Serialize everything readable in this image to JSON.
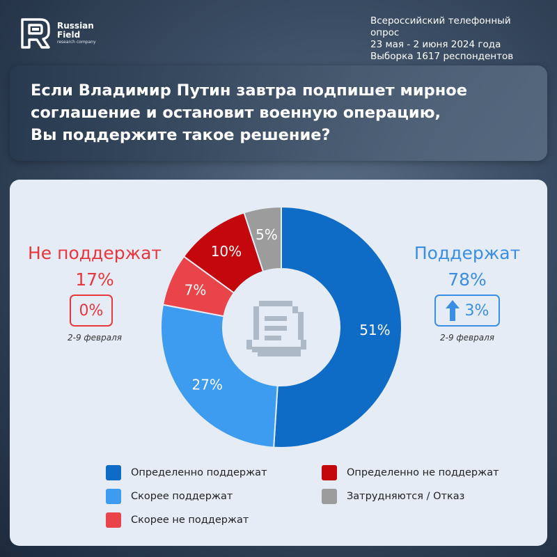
{
  "brand": {
    "name_line1": "Russian",
    "name_line2": "Field",
    "tagline": "research company"
  },
  "survey": {
    "line1": "Всероссийский телефонный опрос",
    "line2": "23 мая - 2 июня 2024 года",
    "line3": "Выборка 1617 респондентов"
  },
  "question": {
    "line1": "Если Владимир Путин завтра подпишет мирное",
    "line2": "соглашение и остановит  военную операцию,",
    "line3": "Вы поддержите такое решение?"
  },
  "summary": {
    "oppose": {
      "label": "Не поддержат",
      "value_text": "17%",
      "change_text": "0%",
      "period": "2-9 февраля",
      "color": "#e8363c"
    },
    "support": {
      "label": "Поддержат",
      "value_text": "78%",
      "change_text": "3%",
      "change_direction": "up",
      "period": "2-9 февраля",
      "color": "#3a8ee6"
    }
  },
  "chart_data": {
    "type": "pie",
    "style": "donut",
    "center_icon": "document-icon",
    "slices": [
      {
        "label": "Определенно поддержат",
        "value": 51,
        "value_text": "51%",
        "color": "#0f6cc6"
      },
      {
        "label": "Скорее поддержат",
        "value": 27,
        "value_text": "27%",
        "color": "#3d9cf0"
      },
      {
        "label": "Скорее не поддержат",
        "value": 7,
        "value_text": "7%",
        "color": "#e8444a"
      },
      {
        "label": "Определенно не поддержат",
        "value": 10,
        "value_text": "10%",
        "color": "#c4060d"
      },
      {
        "label": "Затрудняются / Отказ",
        "value": 5,
        "value_text": "5%",
        "color": "#9c9c9c"
      }
    ],
    "legend": [
      {
        "label": "Определенно поддержат",
        "color": "#0f6cc6"
      },
      {
        "label": "Определенно не поддержат",
        "color": "#c4060d"
      },
      {
        "label": "Скорее поддержат",
        "color": "#3d9cf0"
      },
      {
        "label": "Затрудняются / Отказ",
        "color": "#9c9c9c"
      },
      {
        "label": "Скорее не поддержат",
        "color": "#e8444a"
      }
    ]
  }
}
